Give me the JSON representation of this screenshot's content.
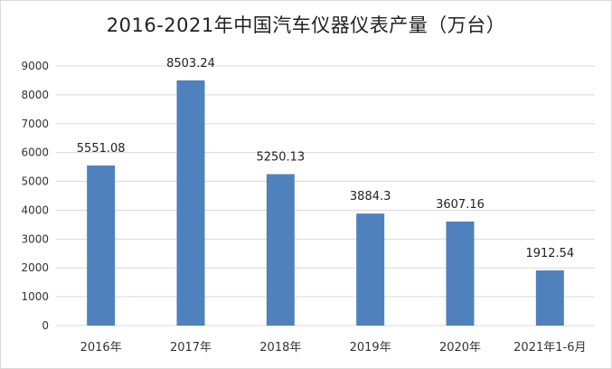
{
  "chart_data": {
    "type": "bar",
    "title": "2016-2021年中国汽车仪器仪表产量（万台）",
    "categories": [
      "2016年",
      "2017年",
      "2018年",
      "2019年",
      "2020年",
      "2021年1-6月"
    ],
    "values": [
      5551.08,
      8503.24,
      5250.13,
      3884.3,
      3607.16,
      1912.54
    ],
    "data_labels": [
      "5551.08",
      "8503.24",
      "5250.13",
      "3884.3",
      "3607.16",
      "1912.54"
    ],
    "yticks": [
      "0",
      "1000",
      "2000",
      "3000",
      "4000",
      "5000",
      "6000",
      "7000",
      "8000",
      "9000"
    ],
    "ylim": [
      0,
      9000
    ],
    "xlabel": "",
    "ylabel": "",
    "grid": true,
    "legend": "none",
    "bar_color": "#4f81bd",
    "grid_color": "#d9d9d9"
  }
}
